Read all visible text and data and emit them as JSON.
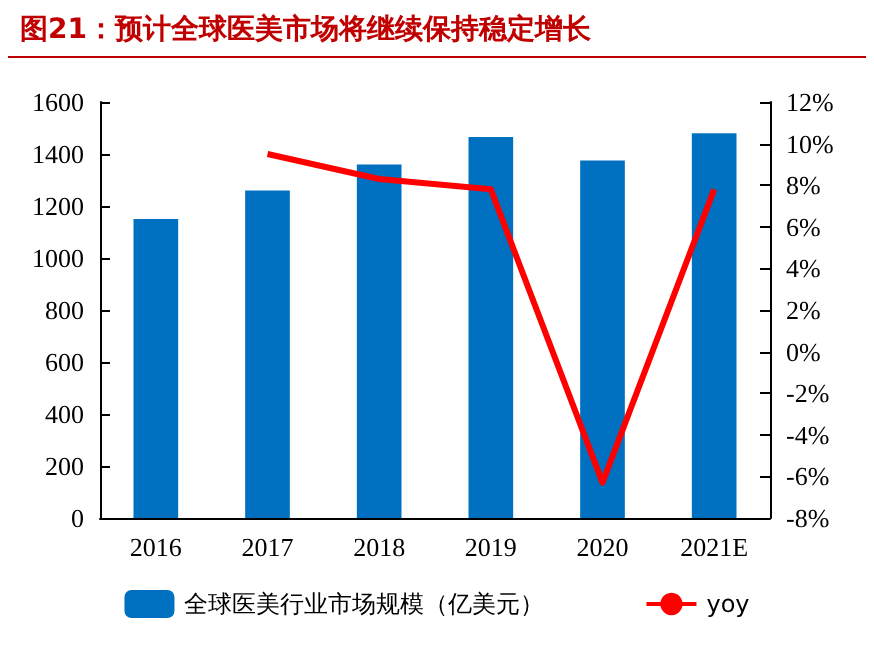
{
  "chart_data": {
    "type": "bar",
    "title": "图21：预计全球医美市场将继续保持稳定增长",
    "categories": [
      "2016",
      "2017",
      "2018",
      "2019",
      "2020",
      "2021E"
    ],
    "series": [
      {
        "name": "全球医美行业市场规模（亿美元）",
        "color": "#0070c0",
        "values": [
          1150,
          1260,
          1360,
          1465,
          1375,
          1480
        ]
      },
      {
        "name": "yoy",
        "type": "line",
        "axis": "y2",
        "color": "#ff0000",
        "values": [
          null,
          9.5,
          8.3,
          7.8,
          -6.3,
          7.8
        ]
      }
    ],
    "ylim": [
      0,
      1600
    ],
    "yticks": [
      0,
      200,
      400,
      600,
      800,
      1000,
      1200,
      1400,
      1600
    ],
    "y2lim": [
      -8,
      12
    ],
    "y2ticks": [
      {
        "value": -8,
        "label": "-8%"
      },
      {
        "value": -6,
        "label": "-6%"
      },
      {
        "value": -4,
        "label": "-4%"
      },
      {
        "value": -2,
        "label": "-2%"
      },
      {
        "value": 0,
        "label": "0%"
      },
      {
        "value": 2,
        "label": "2%"
      },
      {
        "value": 4,
        "label": "4%"
      },
      {
        "value": 6,
        "label": "6%"
      },
      {
        "value": 8,
        "label": "8%"
      },
      {
        "value": 10,
        "label": "10%"
      },
      {
        "value": 12,
        "label": "12%"
      }
    ],
    "grid": false,
    "legend": "bottom",
    "marker": "none"
  }
}
